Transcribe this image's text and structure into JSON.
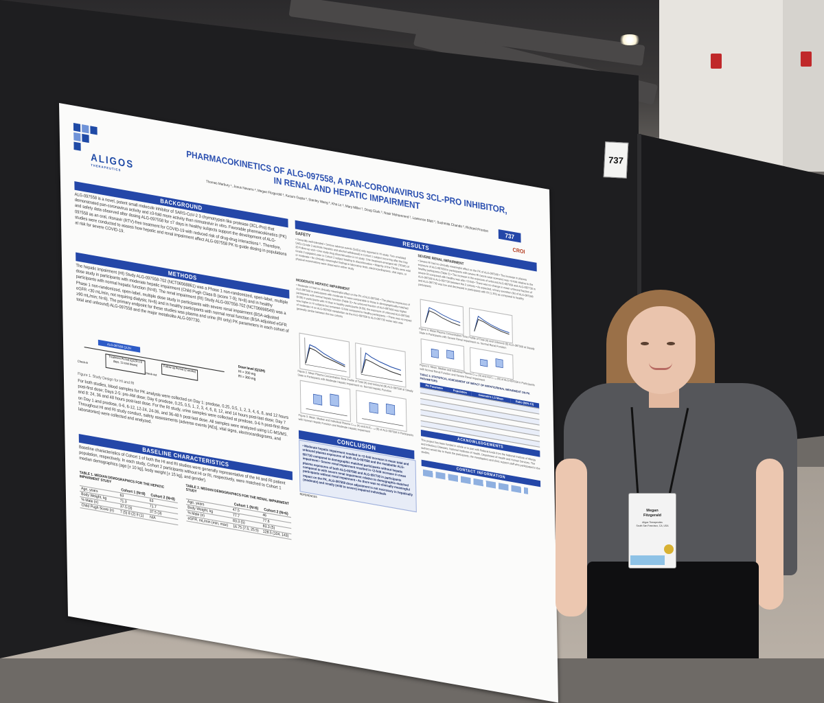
{
  "scene": {
    "booth_number": "737"
  },
  "poster": {
    "logo_text": "ALIGOS",
    "logo_sub": "THERAPEUTICS",
    "title_line1": "PHARMACOKINETICS OF ALG-097558, A PAN-CORONAVIRUS 3CL-PRO INHIBITOR,",
    "title_line2": "IN RENAL AND HEPATIC IMPAIRMENT",
    "authors": "Thomas Marbury ¹, Jesus Navarro ², Megan Fitzgerald ³, Kusum Gupta ³, Stanley Wang ³, Kha Le ³, Mary Miller ³, Doug Clark ³, Nasir Mohammed ³, Lawrence Blatt ³, Sushmita Chanda ³, Richard Preston",
    "poster_number": "737",
    "conference": "CROI",
    "background_header": "BACKGROUND",
    "background_text": "ALG-097558 is a novel, potent small molecule inhibitor of SARS-CoV-2 3 chymotrypsin like protease (3CL-Pro) that demonstrated pan-coronavirus activity and ≥3-fold more activity than nirmatrelvir in vitro. Favorable pharmacokinetics (PK) and safety data observed after dosing ALG-097558 for ≤7 days in healthy subjects support the development of ALG-097558 as an oral, ritonavir (RTV)-free treatment for COVID-19 with reduced risk of drug-drug interactions ¹. Therefore, studies were conducted to assess how hepatic and renal impairment affect ALG-097558 PK to guide dosing in populations at risk for severe COVID-19.",
    "methods_header": "METHODS",
    "methods_text": "The hepatic impairment (HI) Study ALG-097558-702 (NCT06568861) was a Phase 1 non-randomized, open-label, multiple dose study in participants with moderate hepatic impairment (Child Pugh Class B (score 7-9); N=8) and in healthy participants with normal hepatic function (N=8). The renal impairment (RI) Study ALG-097558-702 (NCT06698549) was a Phase 1 non-randomized, open-label, multiple dose study in participants with severe renal impairment (BSA-adjusted eGFR <30 mL/min, not requiring dialysis; N=6) and in healthy participants with normal renal function (BSA adjusted eGFR ≥90 mL/min; N=6). The primary endpoint for these studies was plasma and urine (RI only) PK parameters in each cohort of total and unbound) ALG-097558 and the major metabolite ALG-097730.",
    "design_drug": "ALG-097558 Q12H",
    "design_treatment": "Treatment Period (Q12H x 6 days, 11 total doses)",
    "design_followup": "Follow-up Period (2 weeks)",
    "design_checkin": "Check-in",
    "design_checkout": "Check-out",
    "dose_header": "Dose level (Q12H)",
    "dose_hi": "HI = 200 mg",
    "dose_ri": "RI = 300 mg",
    "figure1_caption": "Figure 1. Study Design for HI and RI",
    "sampling_text": "For both studies, blood samples for PK analysis were collected on Day 1: predose, 0.25, 0.5, 1, 2, 3, 4, 6, 8, and 12 hours post-first dose; Days 2-5: pre-AM dose; Day 6 predose, 0.25, 0.5, 1, 2, 3, 4, 6, 8, 12, and 14 hours post-last dose; Day 7 and 8: 24, 36 and 48 hours post-last dose. For the RI study, urine samples were collected at predose, 0-6 h post-first dose on Day 1 and predose, 0-6, 6-12, 12-24, 24-36, and 36-48 h post-last dose. All samples were analyzed using LC-MS/MS. Throughout HI and RI study conduct, safety assessments (adverse events [AEs], vital signs, electrocardiograms, and laboratories) were collected and analyzed.",
    "baseline_header": "BASELINE CHARACTERISTICS",
    "baseline_text": "Baseline characteristics of Cohort 1 of both the HI and RI studies were generally representative of the HI and RI patient population, respectively. In each study, Cohort 2 participants without HI or RI, respectively, were matched to Cohort 1 median demographics (age [± 10 kg], body weight [± 15 kg], and gender).",
    "table1_title": "TABLE 1. MEDIAN DEMOGRAPHICS FOR THE HEPATIC IMPAIRMENT STUDY",
    "table1_cols": [
      "",
      "Cohort 1 (N=8)",
      "Cohort 2 (N=8)"
    ],
    "table1_rows": [
      [
        "Age, years",
        "63",
        "63"
      ],
      [
        "Body Weight, kg",
        "71.3",
        "71.7"
      ],
      [
        "% Male (n)",
        "37.5 (3)",
        "37.5 (3)"
      ],
      [
        "Child Pugh Score (n)",
        "7 (5) 8 (2) 9 (1)",
        "N/A"
      ]
    ],
    "table2_title": "TABLE 2. MEDIAN DEMOGRAPHICS FOR THE RENAL IMPAIRMENT STUDY",
    "table2_cols": [
      "",
      "Cohort 1 (N=6)",
      "Cohort 2 (N=6)"
    ],
    "table2_rows": [
      [
        "Age, years",
        "47.5",
        "46"
      ],
      [
        "Body Weight, kg",
        "77.7",
        "77.6"
      ],
      [
        "% Male (n)",
        "83.3 (5)",
        "83.3 (5)"
      ],
      [
        "eGFR, mL/min (min, max)",
        "16.75 (7.5, 25.5)",
        "128.5 (104, 143)"
      ]
    ],
    "results_header": "RESULTS",
    "safety_header": "SAFETY",
    "safety_text": "• Generally well-tolerated • Serious adverse events (SAEs) only reported in HI study: Two unrelated SAEs (Grade 3 alcoholic hepatitis and alcohol withdrawal) in Cohort 1 subject occurring after the Day 20 Follow-up visit • One study drug discontinuation in HI study: One treatment-emergent AE (TEAE) of Grade 2 epigastric pain in Cohort 2 subject leading to discontinuation • Majority of the TEAEs were mild or moderate • No clinically meaningful findings in laboratory tests, electrocardiograms, vital signs, or physical examinations were observed in either study",
    "moderate_header": "MODERATE HEPATIC IMPAIRMENT",
    "moderate_text": "• Moderate HI had no clinically meaningful effect on the PK of ALG-097558 • The plasma exposures of ALG-097558 in participants with moderate HI were comparable to those in demographically-matched participants with normal hepatic function (Table 3) • As unbound fraction of ALG-097558 was higher (0.09) in participants with HI than in healthy participants (0.05), the exposure of unbound ALG-097558 was higher in HI subjects but remained <2-fold compared to healthy participants. • There was no impact of moderate HI on ALG-097558 metabolism as the ALG-097558 to ALG-097730 molar ratio was generally similar between the two cohorts",
    "figure2_caption": "Figure 2. Mean Plasma Concentration-Time Profile of Total (A) and Unbound (B) ALG-097558 at Steady State in Participants with Moderate Hepatic Impairment vs. Normal Hepatic Function",
    "figure3_caption": "Figure 3. Mean, Median and Individual Plasma Cₘₐₓ (A) and AUC₀₋₁₂ (B) of ALG-097558 in Participants with Normal Hepatic Function and Moderate Hepatic Impairment",
    "severe_header": "SEVERE RENAL IMPAIRMENT",
    "severe_text": "• Severe RI had no clinically meaningful effect on the PK of ALG-097558 • The increase in plasma exposure of ALG-097558 in participants with severe RI (worst-case scenario) was <2-fold relative to the healthy participants (Table 3) • The increase in the exposure of unbound ALG-097558 and ALG-097730 in severe RI compared with healthy was also <2-fold • There was no change in mean unbound fraction of ALG-097558 & ALG-097730 between the 2 cohorts • As expected, urinary excretion (fe) of ALG-097558 and ALG-097730 was low and decreased in participants with RI (1.3%) as compared to healthy participants",
    "figure4_caption": "Figure 4. Mean Plasma Concentration-Time Profile of Total (A) and Unbound (B) ALG-097558 at Steady State in Participants with Severe Renal Impairment vs. Normal Renal Function",
    "figure5_caption": "Figure 5. Mean, Median and Individual Plasma Cₘₐₓ (A) and AUC₀₋₁₂ (B) of ALG-097558 in Participants with Normal Renal Function and Severe Renal Impairment",
    "table3_title": "TABLE 3. STATISTICAL ASSESSMENT OF IMPACT OF HEPATIC/RENAL IMPAIRMENT ON PK PARAMETERS",
    "table3_cols": [
      "PK Parameter",
      "Population",
      "Geometric LS Mean",
      "Ratio (90% CI)"
    ],
    "conclusion_header": "CONCLUSION",
    "conclusion_text": "• Moderate hepatic impairment resulted in <2-fold increase in mean total and unbound plasma exposures of both ALG-097558 and the metabolite ALG-097730 compared to demographic matched participants without hepatic impairment • Severe renal impairment resulted in <2-fold increase in mean plasma exposures of both ALG-097558 and ALG-097730 in participants compared to with severe renal impairment relative to demographic-matched participants without renal impairment • As there was no clinically meaningful impact on the PK, ALG-097558 dose adjustment is not necessary in hepatically (moderate) and renally (mild to severe) impaired individuals",
    "ack_header": "ACKNOWLEDGEMENTS",
    "ack_text": "This project has been funded in whole or in part with Federal funds from the National Institute of Allergy and Infectious Diseases, National Institutes of Health, Department of Health and Human Services. The authors would like to thank the participants, the investigators and clinic support staff who participated in the studies.",
    "contact_header": "CONTACT INFORMATION",
    "references_label": "REFERENCES"
  },
  "badge": {
    "name_first": "Megan",
    "name_last": "Fitzgerald",
    "org": "Aligos Therapeutics",
    "location": "South San Francisco, CA, USA"
  }
}
